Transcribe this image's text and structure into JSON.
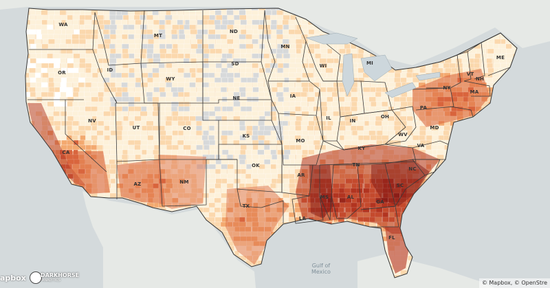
{
  "map": {
    "state_labels": [
      {
        "abbr": "WA"
      },
      {
        "abbr": "OR"
      },
      {
        "abbr": "CA"
      },
      {
        "abbr": "NV"
      },
      {
        "abbr": "ID"
      },
      {
        "abbr": "MT"
      },
      {
        "abbr": "WY"
      },
      {
        "abbr": "UT"
      },
      {
        "abbr": "AZ"
      },
      {
        "abbr": "CO"
      },
      {
        "abbr": "NM"
      },
      {
        "abbr": "ND"
      },
      {
        "abbr": "SD"
      },
      {
        "abbr": "NE"
      },
      {
        "abbr": "KS"
      },
      {
        "abbr": "OK"
      },
      {
        "abbr": "TX"
      },
      {
        "abbr": "MN"
      },
      {
        "abbr": "IA"
      },
      {
        "abbr": "MO"
      },
      {
        "abbr": "AR"
      },
      {
        "abbr": "LA"
      },
      {
        "abbr": "WI"
      },
      {
        "abbr": "IL"
      },
      {
        "abbr": "MI"
      },
      {
        "abbr": "IN"
      },
      {
        "abbr": "OH"
      },
      {
        "abbr": "KY"
      },
      {
        "abbr": "TN"
      },
      {
        "abbr": "MS"
      },
      {
        "abbr": "AL"
      },
      {
        "abbr": "GA"
      },
      {
        "abbr": "FL"
      },
      {
        "abbr": "SC"
      },
      {
        "abbr": "NC"
      },
      {
        "abbr": "VA"
      },
      {
        "abbr": "WV"
      },
      {
        "abbr": "PA"
      },
      {
        "abbr": "NY"
      },
      {
        "abbr": "MD"
      },
      {
        "abbr": "VT"
      },
      {
        "abbr": "NH"
      },
      {
        "abbr": "ME"
      },
      {
        "abbr": "MA"
      }
    ],
    "water_label": "Gulf of\nMexico",
    "colors": {
      "ocean": "#d4dadc",
      "land": "#eceeea",
      "no_data": "#d7d9da",
      "scale": [
        "#fdf1da",
        "#fbd8ad",
        "#f3a96f",
        "#d9653d",
        "#b23421",
        "#7a1414"
      ]
    }
  },
  "branding": {
    "mapbox_logo": "apbox",
    "darkhorse_logo": "DARKHORSE",
    "darkhorse_sub": "ANALYTICS"
  },
  "attribution": "© Mapbox, © OpenStre"
}
